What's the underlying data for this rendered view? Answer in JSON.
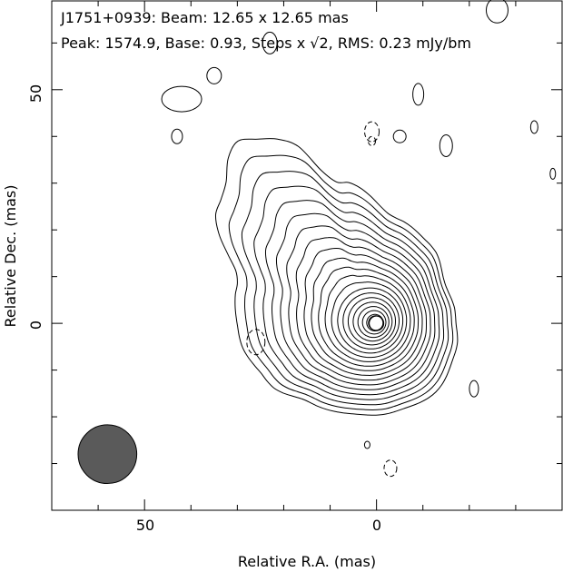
{
  "chart_data": {
    "type": "contour",
    "source": "J1751+0939",
    "header_line1": "J1751+0939: Beam: 12.65 x 12.65 mas",
    "header_line2_prefix": "Peak: 1574.9, Base: 0.93, Steps x ",
    "header_line2_sqrt": "√2",
    "header_line2_suffix": ", RMS: 0.23 mJy/bm",
    "peak": 1574.9,
    "base": 0.93,
    "step_factor": "√2",
    "rms_mjy_per_beam": 0.23,
    "beam_mas": [
      12.65,
      12.65
    ],
    "xlabel": "Relative R.A. (mas)",
    "ylabel": "Relative Dec. (mas)",
    "xlim": [
      70,
      -40
    ],
    "ylim": [
      -40,
      69
    ],
    "x_major_ticks": [
      50,
      0
    ],
    "y_major_ticks": [
      50,
      0
    ],
    "x_tick_labels": [
      "50",
      "0"
    ],
    "y_tick_labels": [
      "50",
      "0"
    ],
    "n_contour_levels": 22,
    "beam_center_mas": [
      58,
      -28
    ],
    "beam_fill_color": "#5a5a5a",
    "contour_color": "#000000"
  }
}
